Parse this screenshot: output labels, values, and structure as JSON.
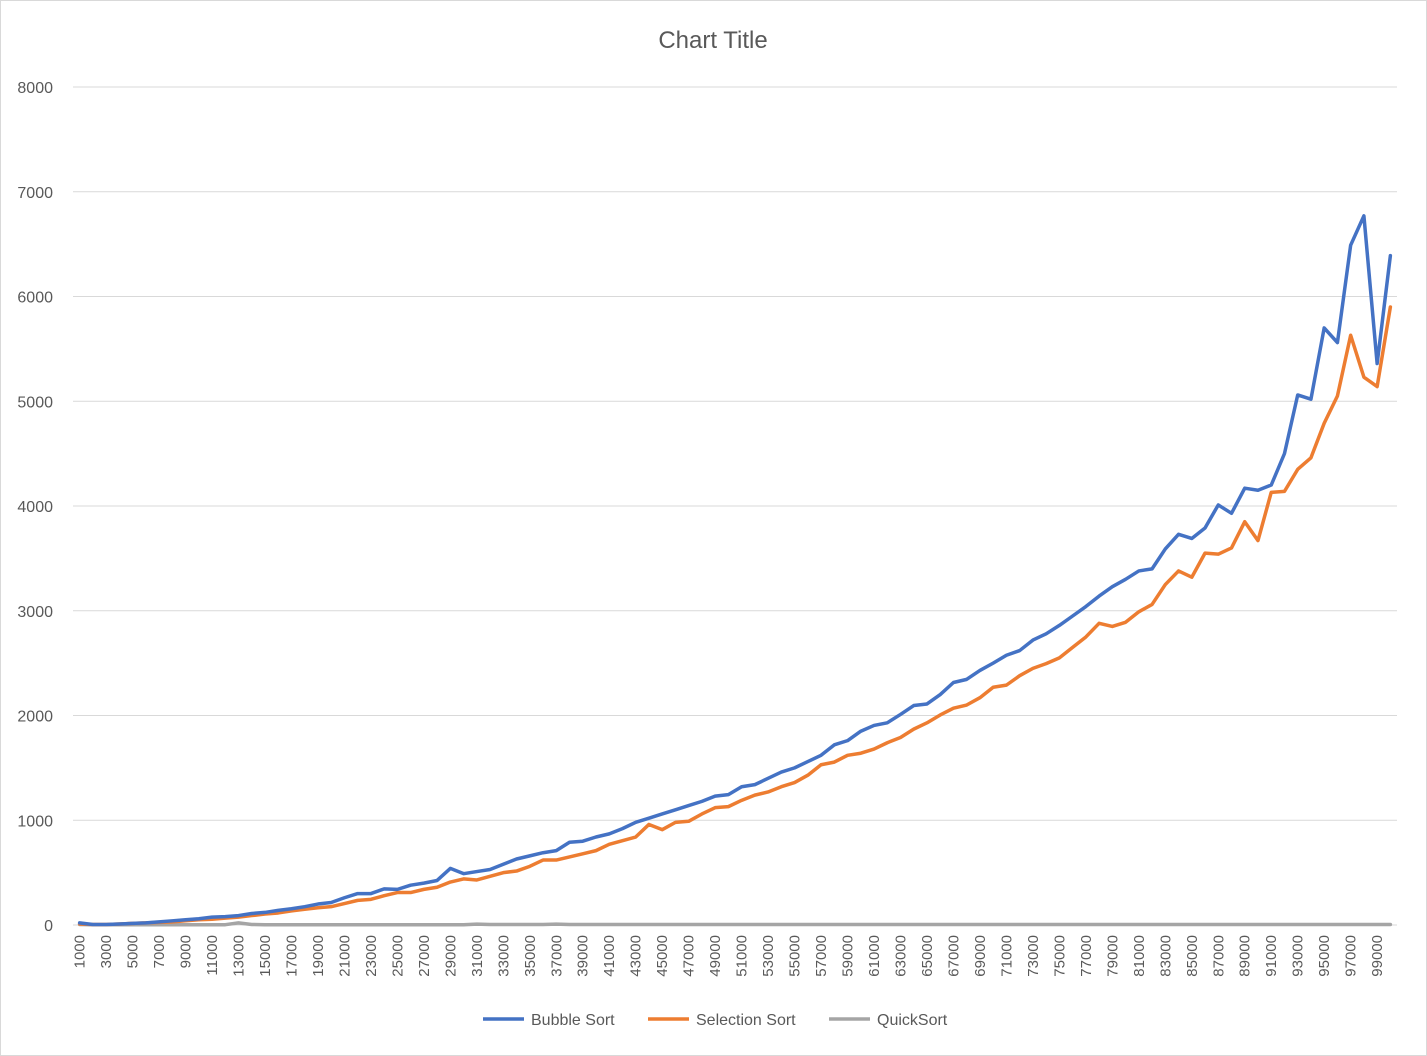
{
  "chart_data": {
    "type": "line",
    "title": "Chart Title",
    "xlabel": "",
    "ylabel": "",
    "ylim": [
      0,
      8000
    ],
    "yticks": [
      0,
      1000,
      2000,
      3000,
      4000,
      5000,
      6000,
      7000,
      8000
    ],
    "xticks": [
      1000,
      3000,
      5000,
      7000,
      9000,
      11000,
      13000,
      15000,
      17000,
      19000,
      21000,
      23000,
      25000,
      27000,
      29000,
      31000,
      33000,
      35000,
      37000,
      39000,
      41000,
      43000,
      45000,
      47000,
      49000,
      51000,
      53000,
      55000,
      57000,
      59000,
      61000,
      63000,
      65000,
      67000,
      69000,
      71000,
      73000,
      75000,
      77000,
      79000,
      81000,
      83000,
      85000,
      87000,
      89000,
      91000,
      93000,
      95000,
      97000,
      99000
    ],
    "x_start": 1000,
    "x_step": 1000,
    "grid": true,
    "legend_position": "bottom",
    "series": [
      {
        "name": "Bubble Sort",
        "color": "#4472c4",
        "values": [
          20,
          5,
          5,
          10,
          15,
          20,
          30,
          40,
          50,
          60,
          75,
          80,
          90,
          110,
          120,
          140,
          155,
          175,
          200,
          215,
          260,
          300,
          300,
          345,
          340,
          380,
          400,
          425,
          540,
          490,
          510,
          530,
          580,
          630,
          660,
          690,
          710,
          790,
          800,
          840,
          870,
          920,
          980,
          1020,
          1060,
          1100,
          1140,
          1180,
          1230,
          1245,
          1320,
          1340,
          1400,
          1460,
          1500,
          1560,
          1620,
          1720,
          1760,
          1850,
          1905,
          1930,
          2010,
          2095,
          2110,
          2200,
          2315,
          2345,
          2430,
          2500,
          2575,
          2620,
          2720,
          2780,
          2860,
          2950,
          3040,
          3140,
          3230,
          3300,
          3380,
          3400,
          3590,
          3730,
          3690,
          3790,
          4010,
          3930,
          4170,
          4150,
          4200,
          4500,
          5060,
          5020,
          5700,
          5560,
          6490,
          6770,
          5360,
          6390
        ]
      },
      {
        "name": "Selection Sort",
        "color": "#ed7d31",
        "values": [
          10,
          5,
          5,
          10,
          15,
          20,
          25,
          30,
          40,
          50,
          55,
          65,
          75,
          90,
          105,
          115,
          135,
          150,
          165,
          175,
          205,
          235,
          245,
          280,
          310,
          310,
          340,
          360,
          410,
          440,
          430,
          465,
          500,
          515,
          560,
          620,
          620,
          650,
          680,
          710,
          770,
          805,
          840,
          960,
          910,
          980,
          990,
          1060,
          1120,
          1130,
          1190,
          1240,
          1270,
          1320,
          1360,
          1430,
          1530,
          1555,
          1620,
          1640,
          1680,
          1740,
          1790,
          1870,
          1930,
          2005,
          2070,
          2100,
          2170,
          2270,
          2290,
          2380,
          2450,
          2495,
          2550,
          2650,
          2750,
          2880,
          2850,
          2890,
          2990,
          3060,
          3250,
          3380,
          3320,
          3550,
          3540,
          3600,
          3850,
          3670,
          4130,
          4140,
          4350,
          4460,
          4790,
          5050,
          5630,
          5230,
          5140,
          5900
        ]
      },
      {
        "name": "QuickSort",
        "color": "#a5a5a5",
        "values": [
          5,
          3,
          3,
          3,
          3,
          3,
          3,
          3,
          3,
          3,
          3,
          3,
          20,
          5,
          3,
          3,
          3,
          3,
          3,
          3,
          3,
          3,
          3,
          3,
          3,
          3,
          3,
          3,
          3,
          3,
          8,
          5,
          5,
          5,
          5,
          5,
          8,
          5,
          5,
          5,
          5,
          5,
          5,
          5,
          5,
          5,
          5,
          5,
          5,
          5,
          5,
          5,
          5,
          5,
          5,
          5,
          5,
          5,
          5,
          5,
          5,
          5,
          5,
          5,
          5,
          5,
          5,
          5,
          5,
          5,
          5,
          5,
          5,
          5,
          5,
          5,
          5,
          5,
          5,
          5,
          5,
          5,
          5,
          5,
          5,
          5,
          5,
          5,
          5,
          5,
          5,
          5,
          5,
          5,
          5,
          5,
          5,
          5,
          5,
          5
        ]
      }
    ]
  }
}
